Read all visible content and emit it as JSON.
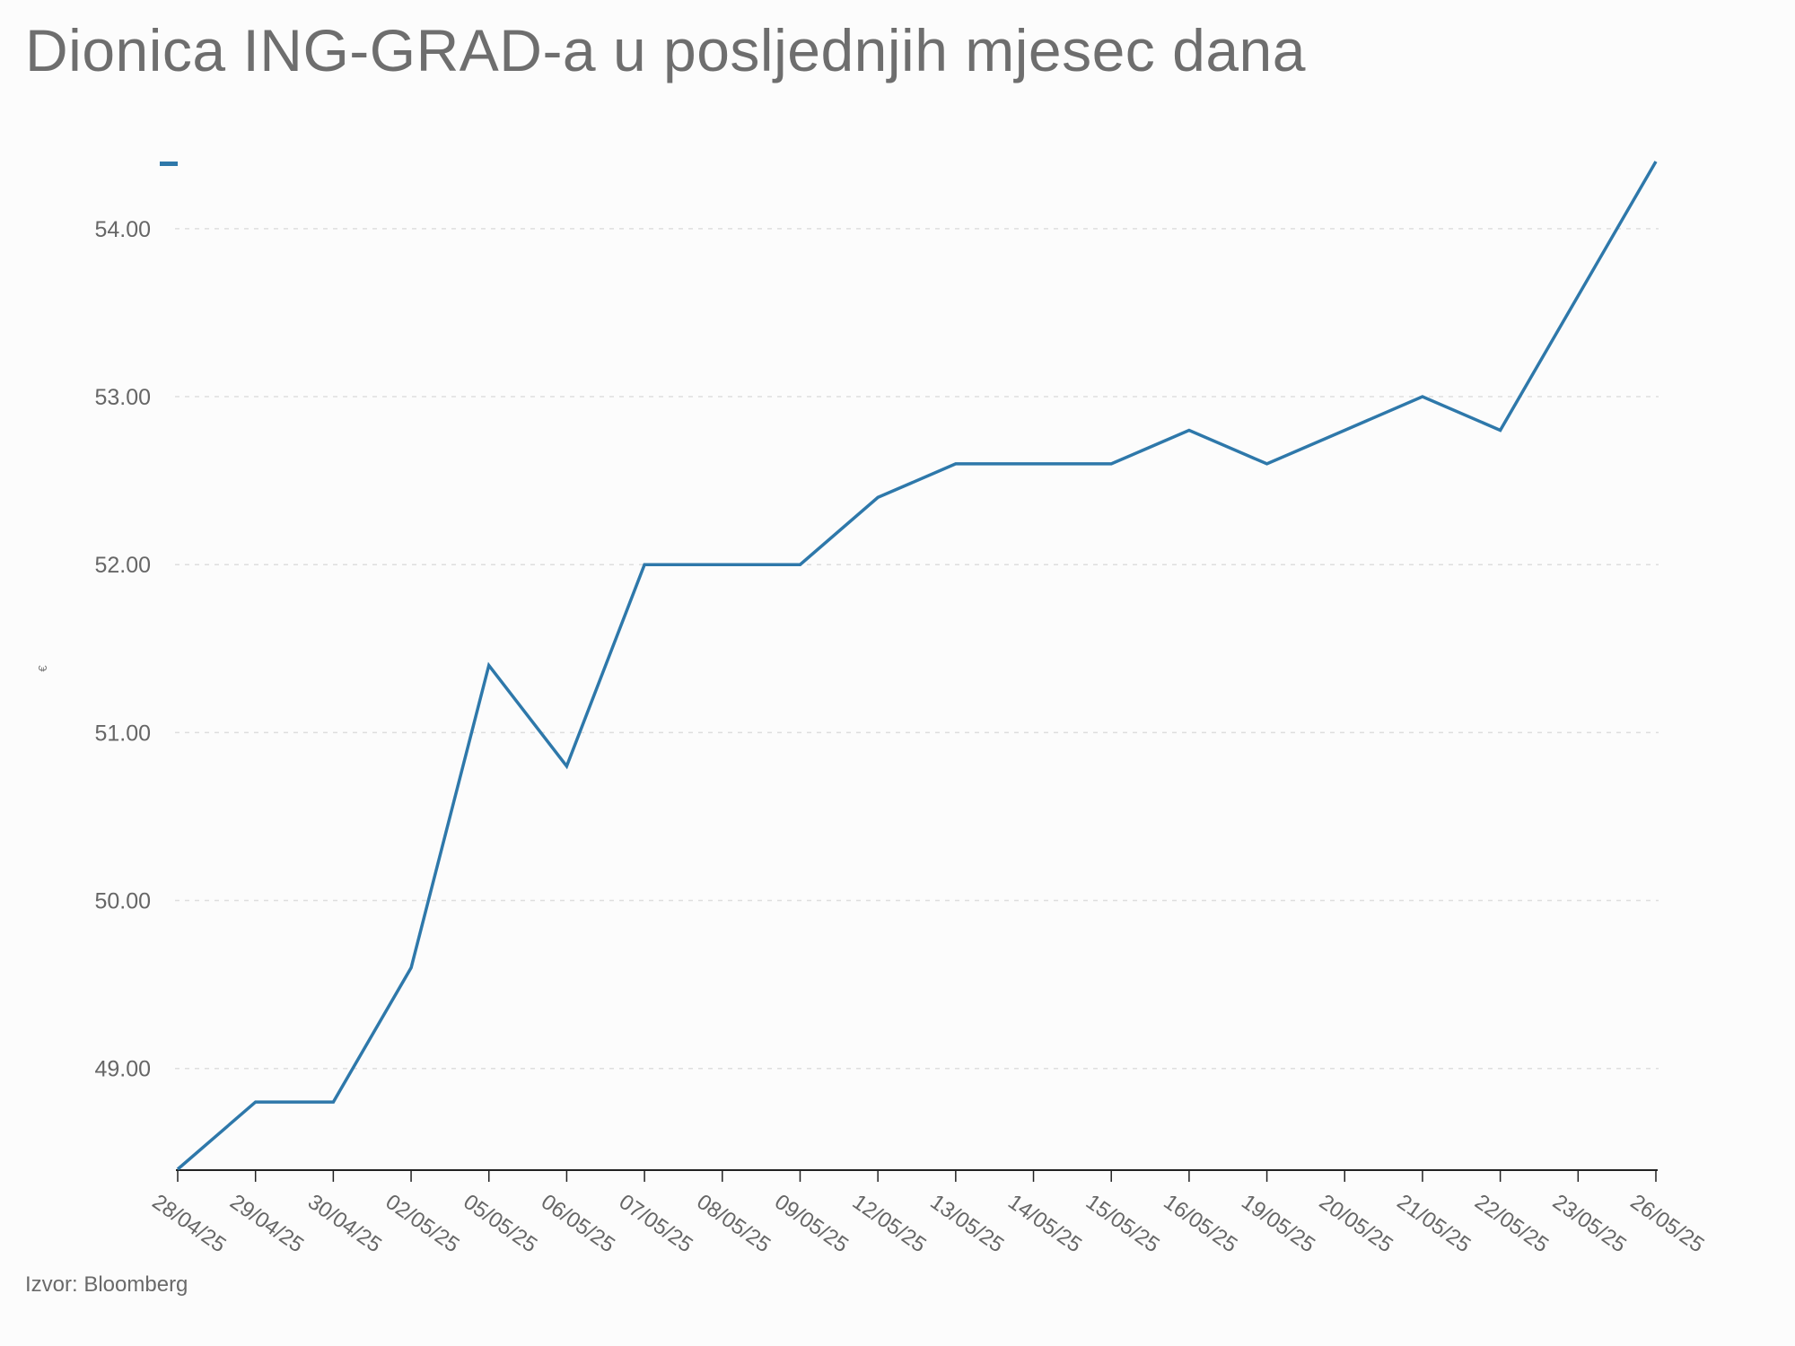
{
  "chart_data": {
    "type": "line",
    "title": "Dionica ING-GRAD-a u posljednjih mjesec dana",
    "xlabel": "",
    "ylabel": "€",
    "categories": [
      "28/04/25",
      "29/04/25",
      "30/04/25",
      "02/05/25",
      "05/05/25",
      "06/05/25",
      "07/05/25",
      "08/05/25",
      "09/05/25",
      "12/05/25",
      "13/05/25",
      "14/05/25",
      "15/05/25",
      "16/05/25",
      "19/05/25",
      "20/05/25",
      "21/05/25",
      "22/05/25",
      "23/05/25",
      "26/05/25"
    ],
    "series": [
      {
        "values": [
          48.4,
          48.8,
          48.8,
          49.6,
          51.4,
          50.8,
          52.0,
          52.0,
          52.0,
          52.4,
          52.6,
          52.6,
          52.6,
          52.8,
          52.6,
          52.8,
          53.0,
          52.8,
          53.6,
          54.4
        ],
        "color": "#2e78aa"
      }
    ],
    "y_ticks": [
      "49.00",
      "50.00",
      "51.00",
      "52.00",
      "53.00",
      "54.00"
    ],
    "ylim": [
      48.4,
      54.4
    ],
    "grid": true,
    "legend": "top-left",
    "source": "Izvor: Bloomberg"
  }
}
